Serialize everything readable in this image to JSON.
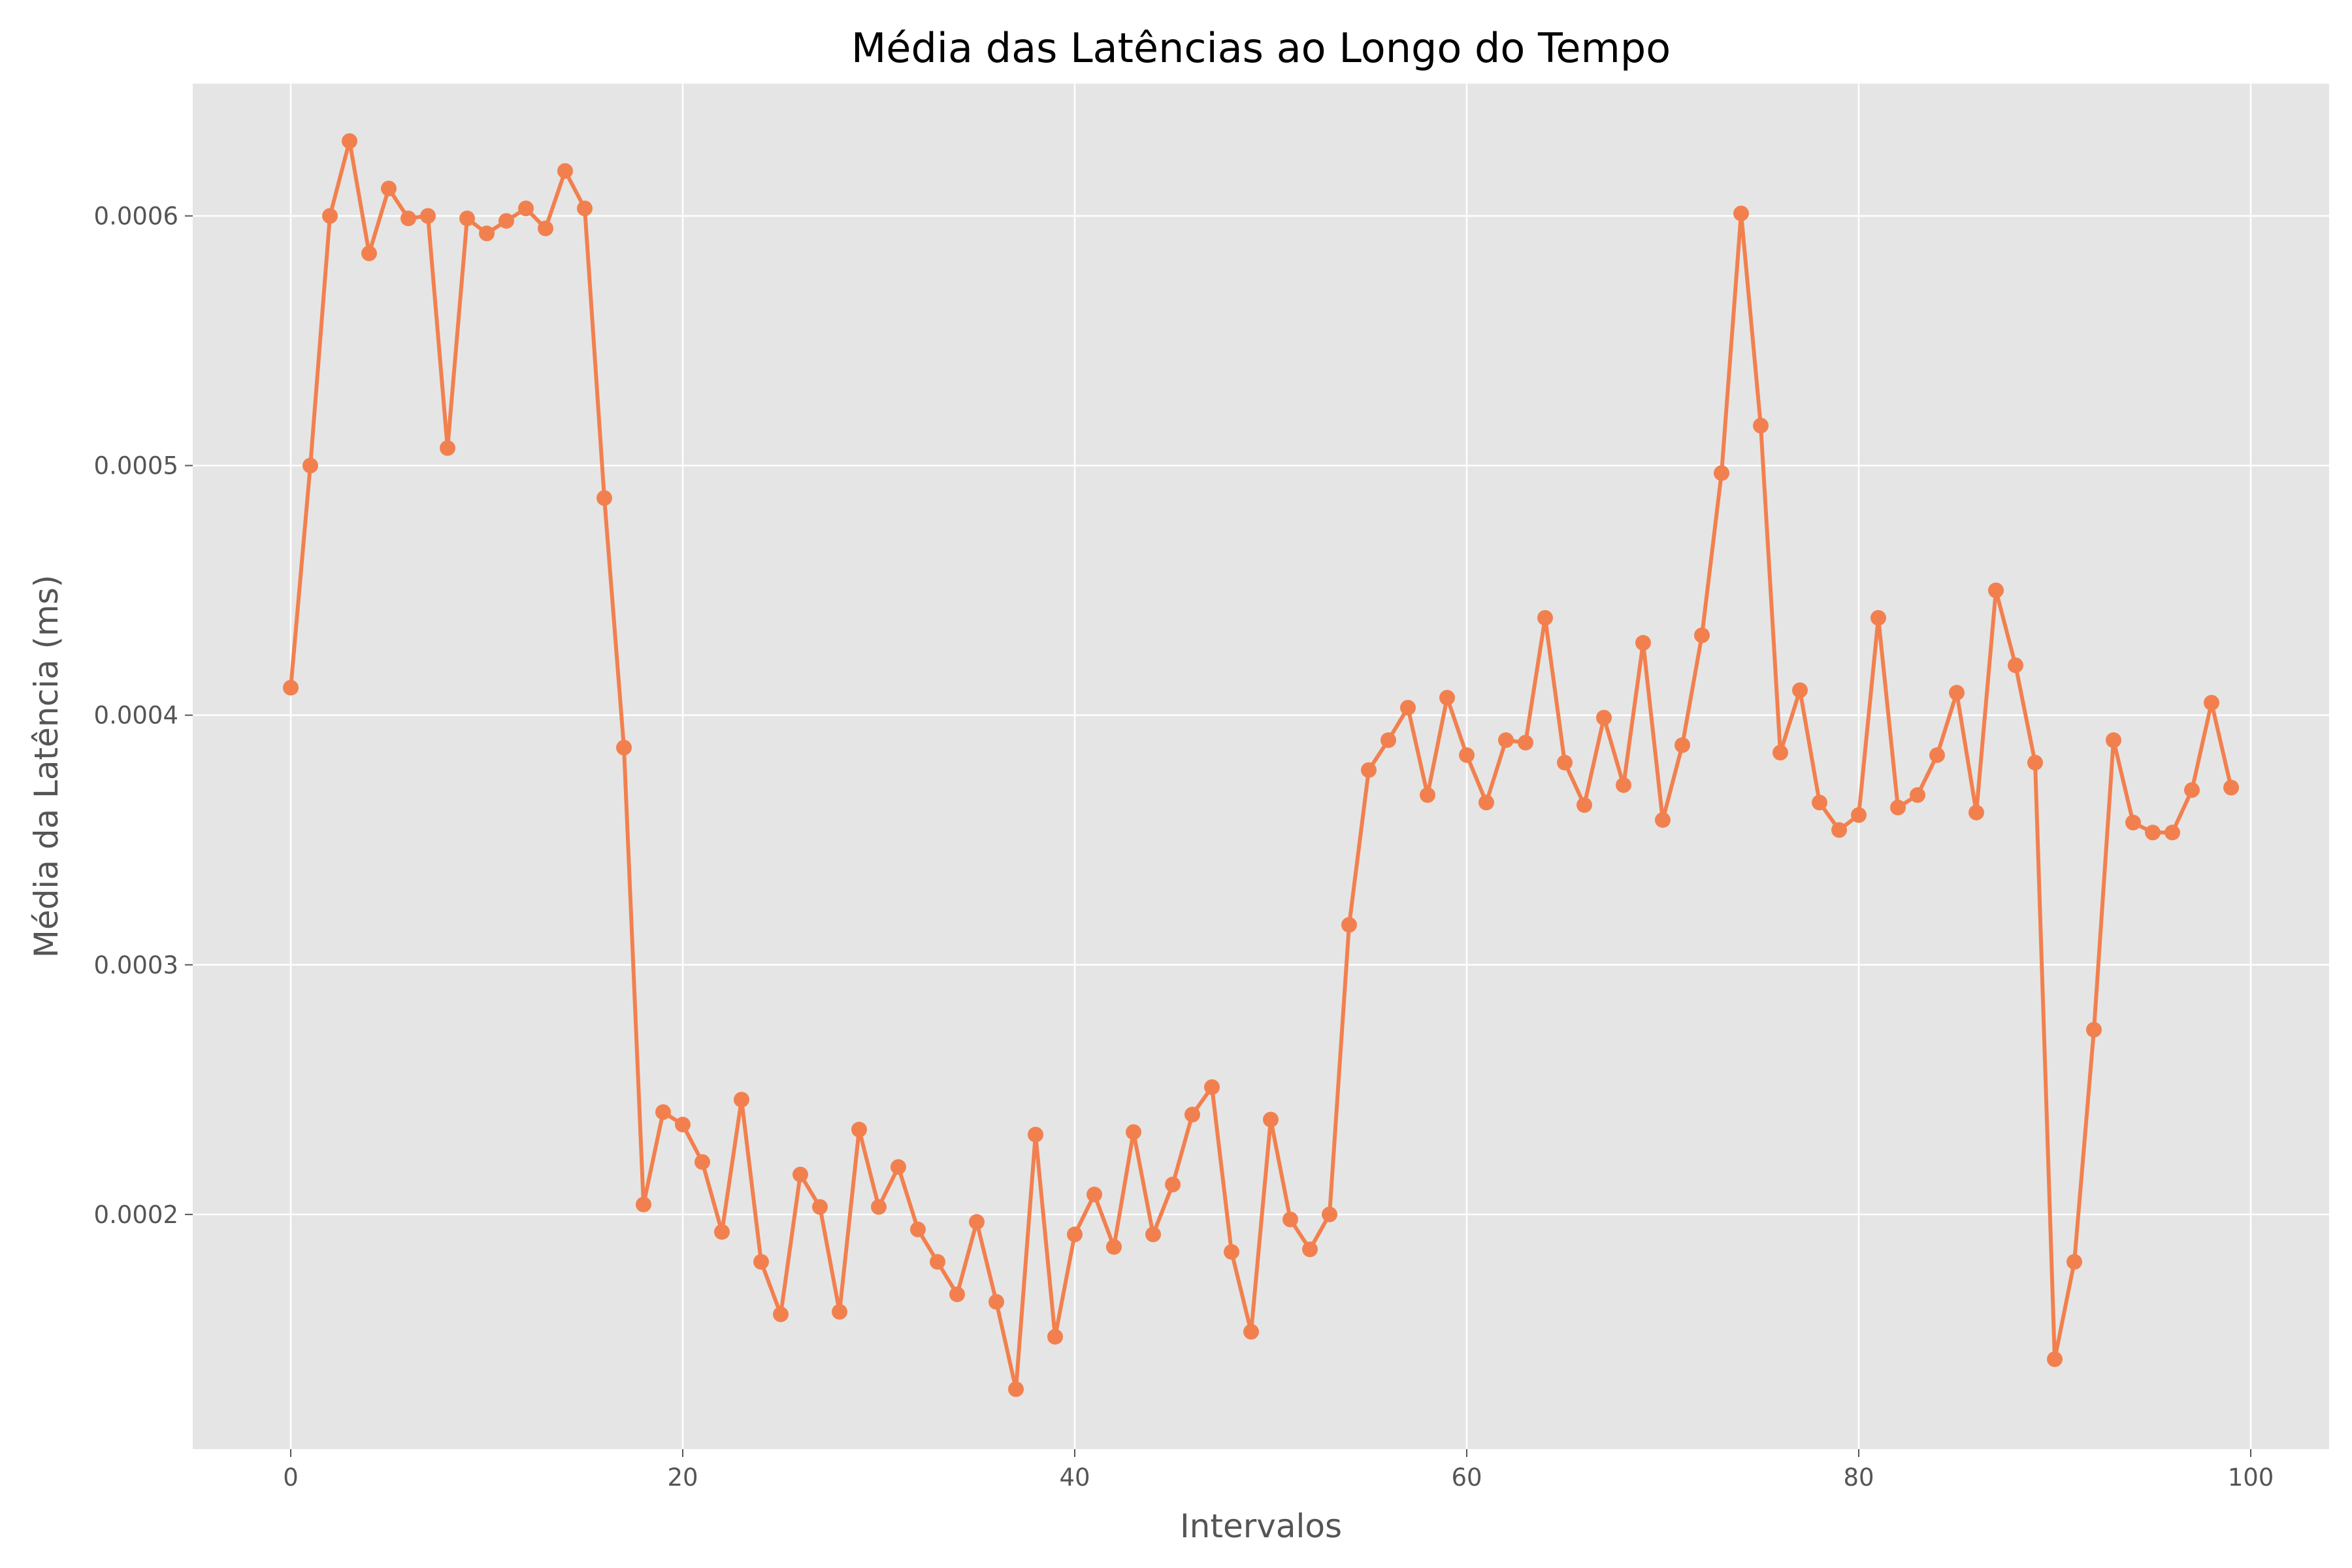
{
  "chart_data": {
    "type": "line",
    "title": "Média das Latências ao Longo do Tempo",
    "xlabel": "Intervalos",
    "ylabel": "Média da Latência (ms)",
    "xlim": [
      -5,
      104
    ],
    "ylim": [
      0.000106,
      0.000653
    ],
    "x_ticks": [
      0,
      20,
      40,
      60,
      80,
      100
    ],
    "x_tick_labels": [
      "0",
      "20",
      "40",
      "60",
      "80",
      "100"
    ],
    "y_ticks": [
      0.0002,
      0.0003,
      0.0004,
      0.0005,
      0.0006
    ],
    "y_tick_labels": [
      "0.0002",
      "0.0003",
      "0.0004",
      "0.0005",
      "0.0006"
    ],
    "grid": true,
    "background": "#e5e5e5",
    "series": [
      {
        "color": "#f2804f",
        "marker": "circle",
        "x": [
          0,
          1,
          2,
          3,
          4,
          5,
          6,
          7,
          8,
          9,
          10,
          11,
          12,
          13,
          14,
          15,
          16,
          17,
          18,
          19,
          20,
          21,
          22,
          23,
          24,
          25,
          26,
          27,
          28,
          29,
          30,
          31,
          32,
          33,
          34,
          35,
          36,
          37,
          38,
          39,
          40,
          41,
          42,
          43,
          44,
          45,
          46,
          47,
          48,
          49,
          50,
          51,
          52,
          53,
          54,
          55,
          56,
          57,
          58,
          59,
          60,
          61,
          62,
          63,
          64,
          65,
          66,
          67,
          68,
          69,
          70,
          71,
          72,
          73,
          74,
          75,
          76,
          77,
          78,
          79,
          80,
          81,
          82,
          83,
          84,
          85,
          86,
          87,
          88,
          89,
          90,
          91,
          92,
          93,
          94,
          95,
          96,
          97,
          98,
          99
        ],
        "values": [
          0.000411,
          0.0005,
          0.0006,
          0.00063,
          0.000585,
          0.000611,
          0.000599,
          0.0006,
          0.000507,
          0.000599,
          0.000593,
          0.000598,
          0.000603,
          0.000595,
          0.000618,
          0.000603,
          0.000487,
          0.000387,
          0.000204,
          0.000241,
          0.000236,
          0.000221,
          0.000193,
          0.000246,
          0.000181,
          0.00016,
          0.000216,
          0.000203,
          0.000161,
          0.000234,
          0.000203,
          0.000219,
          0.000194,
          0.000181,
          0.000168,
          0.000197,
          0.000165,
          0.00013,
          0.000232,
          0.000151,
          0.000192,
          0.000208,
          0.000187,
          0.000233,
          0.000192,
          0.000212,
          0.00024,
          0.000251,
          0.000185,
          0.000153,
          0.000238,
          0.000198,
          0.000186,
          0.0002,
          0.000316,
          0.000378,
          0.00039,
          0.000403,
          0.000368,
          0.000407,
          0.000384,
          0.000365,
          0.00039,
          0.000389,
          0.000439,
          0.000381,
          0.000364,
          0.000399,
          0.000372,
          0.000429,
          0.000358,
          0.000388,
          0.000432,
          0.000497,
          0.000601,
          0.000516,
          0.000385,
          0.00041,
          0.000365,
          0.000354,
          0.00036,
          0.000439,
          0.000363,
          0.000368,
          0.000384,
          0.000409,
          0.000361,
          0.00045,
          0.00042,
          0.000381,
          0.000142,
          0.000181,
          0.000274,
          0.00039,
          0.000357,
          0.000353,
          0.000353,
          0.00037,
          0.000405,
          0.000371
        ]
      }
    ]
  }
}
